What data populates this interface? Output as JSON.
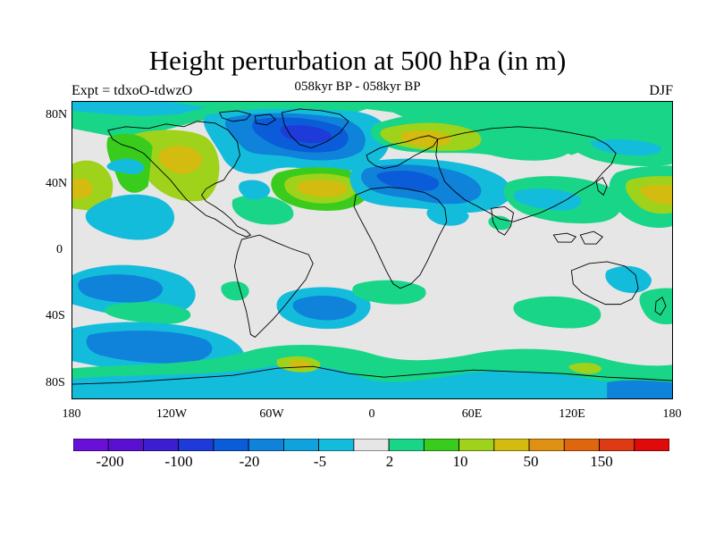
{
  "title": "Height perturbation at 500 hPa (in m)",
  "subtitle": {
    "left": "Expt = tdxoO-tdwzO",
    "center": "058kyr BP - 058kyr BP",
    "right": "DJF"
  },
  "map": {
    "projection": "cylindrical-equidistant",
    "lon_range": [
      -180,
      180
    ],
    "lat_range": [
      -90,
      90
    ],
    "lat_ticks": [
      "80N",
      "40N",
      "0",
      "40S",
      "80S"
    ],
    "lon_ticks": [
      "180",
      "120W",
      "60W",
      "0",
      "60E",
      "120E",
      "180"
    ],
    "background_color": "#e6e6e6",
    "coastline_color": "#000000"
  },
  "colorbar": {
    "colors": [
      "#6a0fd8",
      "#5a10d0",
      "#3d1dd0",
      "#1e3ad8",
      "#0a5cd8",
      "#0f82da",
      "#10a2dc",
      "#14bcdc",
      "#e6e6e6",
      "#19d587",
      "#3acc1c",
      "#9fd21a",
      "#d4bb10",
      "#e09012",
      "#e0660e",
      "#de3a13",
      "#e00a0a"
    ],
    "labels": [
      "-200",
      "-100",
      "-20",
      "-5",
      "2",
      "10",
      "50",
      "150"
    ]
  }
}
